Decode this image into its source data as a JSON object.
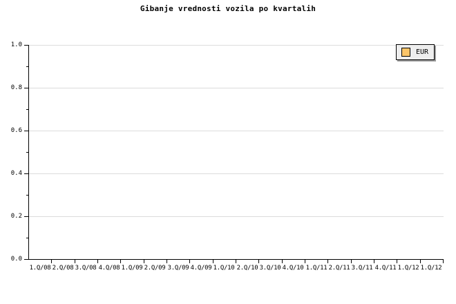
{
  "page": {
    "background_color": "#ffffff",
    "text_color": "#000000"
  },
  "chart_data": {
    "type": "line",
    "title": "Gibanje vrednosti vozila po kvartalih",
    "xlabel": "",
    "ylabel": "",
    "categories": [
      "1.Q/08",
      "2.Q/08",
      "3.Q/08",
      "4.Q/08",
      "1.Q/09",
      "2.Q/09",
      "3.Q/09",
      "4.Q/09",
      "1.Q/10",
      "2.Q/10",
      "3.Q/10",
      "4.Q/10",
      "1.Q/11",
      "2.Q/11",
      "3.Q/11",
      "4.Q/11",
      "1.Q/12",
      "1.Q/12"
    ],
    "series": [
      {
        "name": "EUR",
        "color": "#fbc56a",
        "values": []
      }
    ],
    "ylim": [
      0.0,
      1.0
    ],
    "y_ticks": [
      0.0,
      0.2,
      0.4,
      0.6,
      0.8,
      1.0
    ],
    "y_tick_labels": [
      "0.0",
      "0.2",
      "0.4",
      "0.6",
      "0.8",
      "1.0"
    ],
    "y_minor_tick_interval": 0.1,
    "grid": "horizontal-major",
    "gridline_color": "#dcdcdc",
    "axis_color": "#000000",
    "legend_position": "top-right",
    "note": "plot area is empty - no data points are rendered for the EUR series"
  },
  "legend": {
    "entries": [
      {
        "label": "EUR",
        "swatch_color": "#fbc56a"
      }
    ],
    "background": "#eeeeee",
    "border_color": "#000000",
    "shadow_color": "#999999"
  }
}
